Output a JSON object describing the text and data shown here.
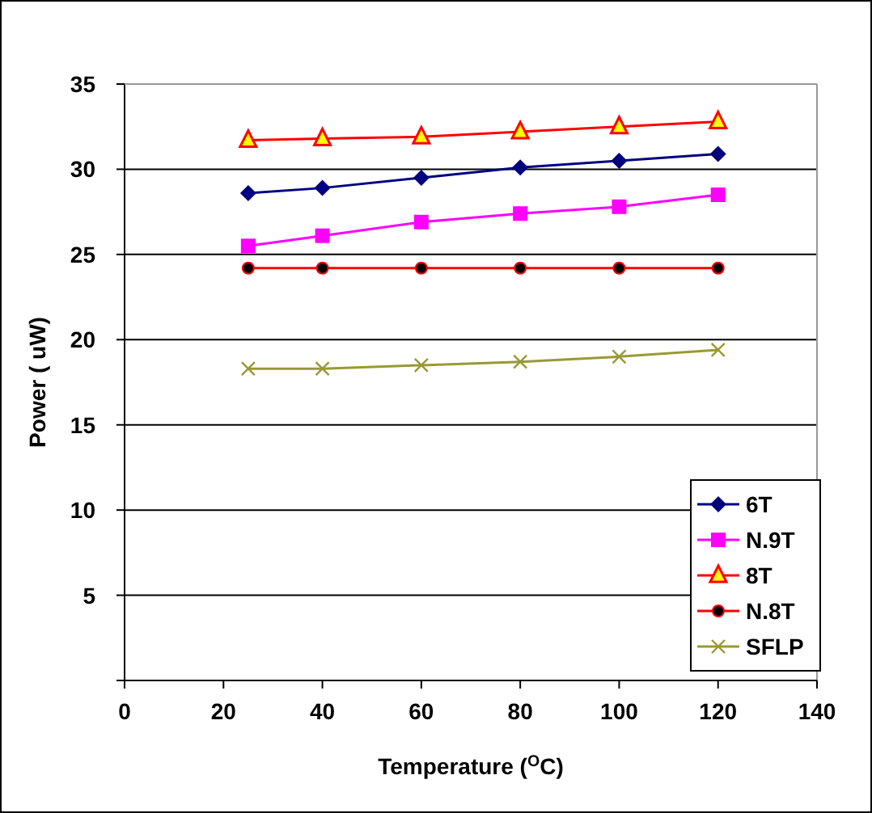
{
  "chart_data": {
    "type": "line",
    "xlabel": "Temperature ($^{O}$C)",
    "ylabel": "Power ( uW)",
    "x": [
      25,
      40,
      60,
      80,
      100,
      120
    ],
    "xlim": [
      0,
      140
    ],
    "xticks": [
      0,
      20,
      40,
      60,
      80,
      100,
      120,
      140
    ],
    "ylim": [
      0,
      35
    ],
    "yticks": [
      {
        "value": 0,
        "label": null
      },
      5,
      10,
      15,
      20,
      25,
      30,
      35
    ],
    "grid": "y",
    "legend": "bottom right",
    "series": [
      {
        "name": "6T",
        "color": "#000080",
        "marker": "diamond",
        "values": [
          28.6,
          28.9,
          29.5,
          30.1,
          30.5,
          30.9
        ]
      },
      {
        "name": "N.9T",
        "color": "#ff00ff",
        "marker": "square",
        "values": [
          25.5,
          26.1,
          26.9,
          27.4,
          27.8,
          28.5
        ]
      },
      {
        "name": "8T",
        "color": "#ff0000",
        "marker": "triangle",
        "values": [
          31.7,
          31.8,
          31.9,
          32.2,
          32.5,
          32.8
        ]
      },
      {
        "name": "N.8T",
        "color": "#ff0000",
        "marker": "circle",
        "values": [
          24.2,
          24.2,
          24.2,
          24.2,
          24.2,
          24.2
        ]
      },
      {
        "name": "SFLP",
        "color": "#999933",
        "marker": "cross",
        "values": [
          18.3,
          18.3,
          18.5,
          18.7,
          19.0,
          19.4
        ]
      }
    ]
  }
}
